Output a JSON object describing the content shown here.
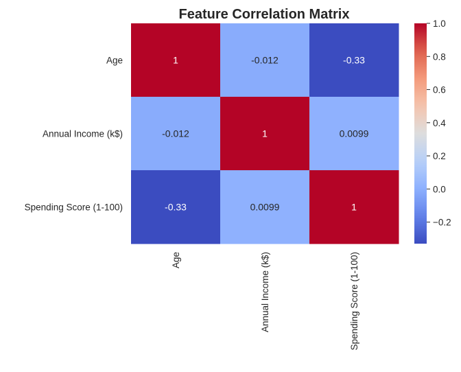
{
  "chart_data": {
    "type": "heatmap",
    "title": "Feature Correlation Matrix",
    "rows": [
      "Age",
      "Annual Income (k$)",
      "Spending Score (1-100)"
    ],
    "columns": [
      "Age",
      "Annual Income (k$)",
      "Spending Score (1-100)"
    ],
    "values": [
      [
        1,
        -0.012,
        -0.33
      ],
      [
        -0.012,
        1,
        0.0099
      ],
      [
        -0.33,
        0.0099,
        1
      ]
    ],
    "value_labels": [
      [
        "1",
        "-0.012",
        "-0.33"
      ],
      [
        "-0.012",
        "1",
        "0.0099"
      ],
      [
        "-0.33",
        "0.0099",
        "1"
      ]
    ],
    "colormap": "coolwarm",
    "colorbar": {
      "range": [
        -0.33,
        1.0
      ],
      "ticks": [
        -0.2,
        0.0,
        0.2,
        0.4,
        0.6,
        0.8,
        1.0
      ],
      "tick_labels": [
        "−0.2",
        "0.0",
        "0.2",
        "0.4",
        "0.6",
        "0.8",
        "1.0"
      ]
    },
    "xlabel": "",
    "ylabel": ""
  }
}
